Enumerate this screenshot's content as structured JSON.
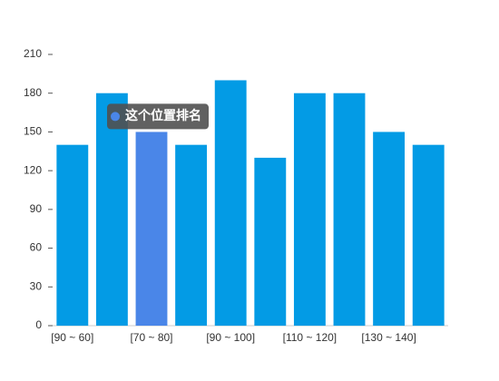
{
  "chart_data": {
    "type": "bar",
    "categories": [
      "[90 ~ 60]",
      null,
      "[70 ~ 80]",
      null,
      "[90 ~ 100]",
      null,
      "[110 ~ 120]",
      null,
      "[130 ~ 140]",
      null
    ],
    "values": [
      140,
      180,
      150,
      140,
      190,
      130,
      180,
      180,
      150,
      140
    ],
    "color": "#039be5",
    "highlight": {
      "index": 2,
      "color": "#4a86e8"
    },
    "tooltip": {
      "text": "这个位置排名",
      "index": 2
    },
    "ylim": [
      0,
      210
    ],
    "yticks": [
      0,
      30,
      60,
      90,
      120,
      150,
      180,
      210
    ]
  }
}
